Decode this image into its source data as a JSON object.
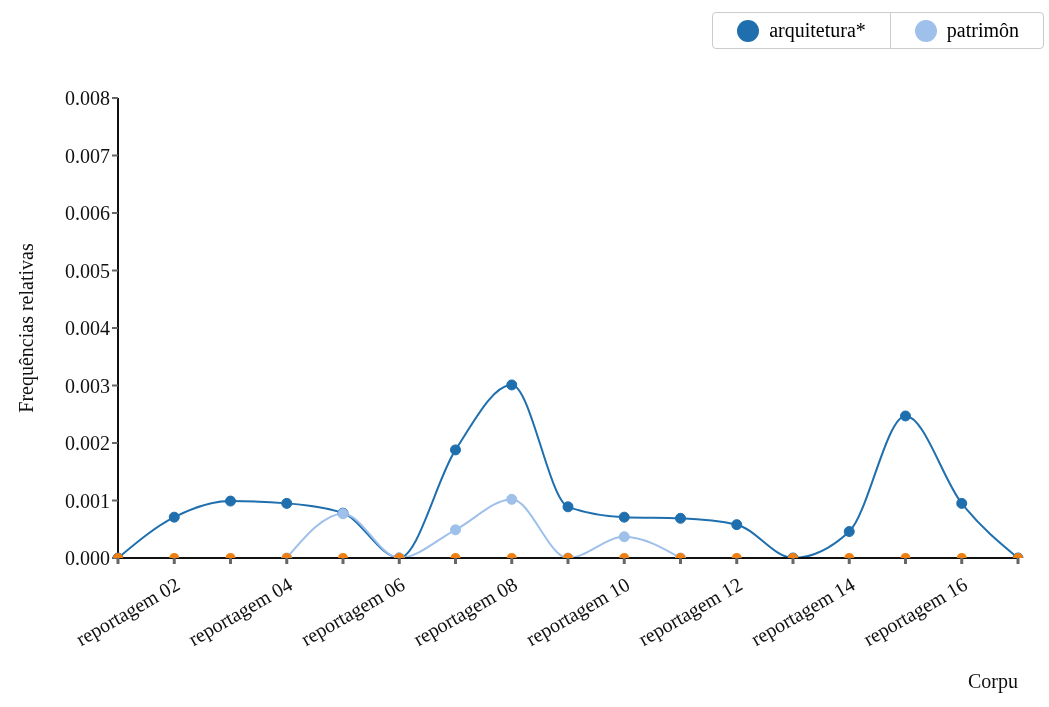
{
  "chart_data": {
    "type": "line",
    "xlabel": "Corpu",
    "ylabel": "Frequências relativas",
    "categories": [
      null,
      "reportagem 02",
      null,
      "reportagem 04",
      null,
      "reportagem 06",
      null,
      "reportagem 08",
      null,
      "reportagem 10",
      null,
      "reportagem 12",
      null,
      "reportagem 14",
      null,
      "reportagem 16",
      null
    ],
    "series": [
      {
        "name": "arquitetura*",
        "color": "#1f6fae",
        "values": [
          0,
          0.00071,
          0.00099,
          0.00095,
          0.00078,
          0,
          0.00188,
          0.00301,
          0.00089,
          0.00071,
          0.00069,
          0.00058,
          0,
          0.00046,
          0.00247,
          0.00095,
          0
        ]
      },
      {
        "name": "patrimôn",
        "color": "#9ec0ea",
        "values": [
          null,
          null,
          null,
          0,
          0.00077,
          0,
          0.00049,
          0.00102,
          0,
          0.00037,
          0,
          null,
          null,
          null,
          null,
          null,
          null
        ]
      },
      {
        "type": "scatter",
        "color": "#f07f12",
        "values": [
          0,
          0,
          0,
          0,
          0,
          0,
          0,
          0,
          0,
          0,
          0,
          0,
          0,
          0,
          0,
          0,
          0
        ]
      }
    ],
    "ylim": [
      0,
      0.008
    ],
    "yticks": [
      {
        "value": 0,
        "label": "0.000"
      },
      0.001,
      0.002,
      0.003,
      0.004,
      0.005,
      0.006,
      0.007,
      0.008
    ],
    "grid": false,
    "legend": "top right",
    "marker": "circle",
    "line_style": "solid"
  }
}
